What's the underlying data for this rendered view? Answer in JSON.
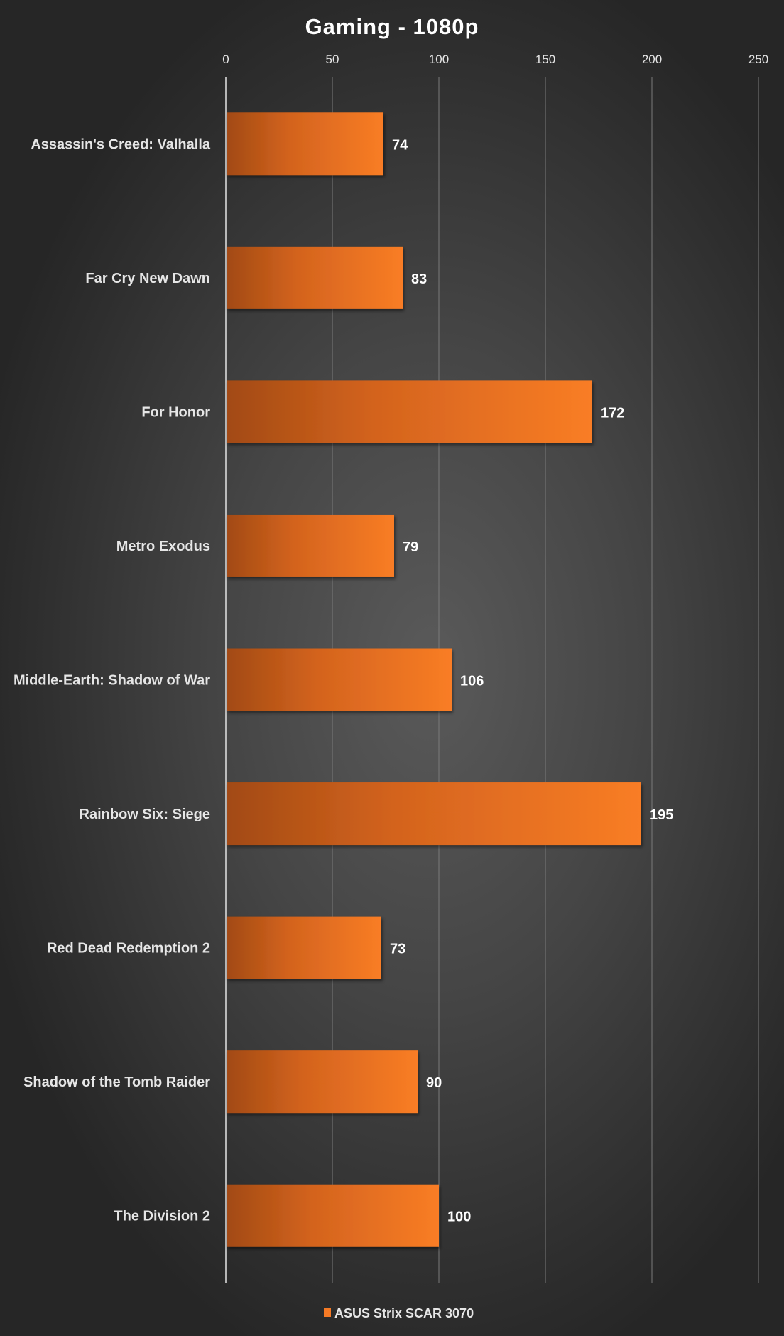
{
  "chart_data": {
    "type": "bar",
    "orientation": "horizontal",
    "title": "Gaming - 1080p",
    "categories": [
      "Assassin's Creed: Valhalla",
      "Far Cry New Dawn",
      "For Honor",
      "Metro Exodus",
      "Middle-Earth: Shadow of War",
      "Rainbow Six: Siege",
      "Red Dead Redemption 2",
      "Shadow of the Tomb Raider",
      "The Division 2"
    ],
    "series": [
      {
        "name": "ASUS Strix SCAR 3070",
        "values": [
          74,
          83,
          172,
          79,
          106,
          195,
          73,
          90,
          100
        ],
        "color": "#f57a25"
      }
    ],
    "xlim": [
      0,
      250
    ],
    "xticks": [
      "0",
      "50",
      "100",
      "150",
      "200",
      "250"
    ],
    "grid": true,
    "axis_position": "top",
    "legend_position": "bottom",
    "data_labels": true
  }
}
